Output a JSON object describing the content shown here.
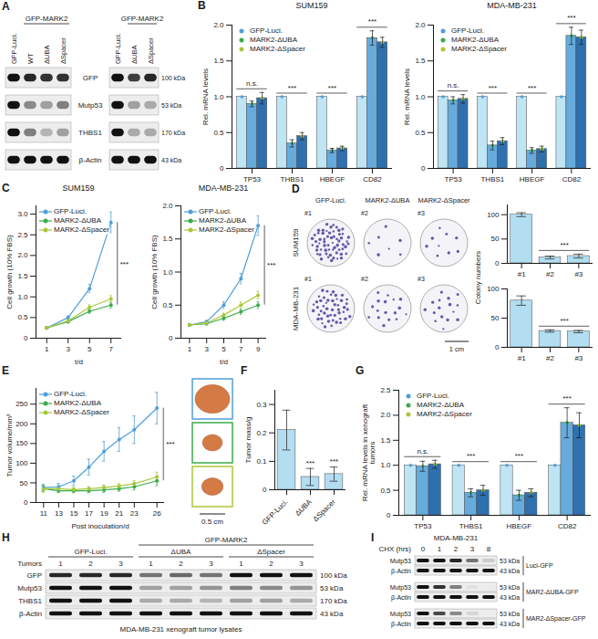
{
  "chart_data": [
    {
      "panel": "B",
      "type": "bar",
      "title": "SUM159",
      "ylabel": "Rel. mRNA levels",
      "categories": [
        "TP53",
        "THBS1",
        "HBEGF",
        "CD82"
      ],
      "series": [
        {
          "name": "GFP-Luci.",
          "color": "#4f9fd9",
          "values": [
            1,
            1,
            1,
            1
          ],
          "errors": [
            0,
            0,
            0,
            0
          ]
        },
        {
          "name": "MARK2-ΔUBA",
          "color": "#3bab4a",
          "values": [
            0.9,
            0.35,
            0.25,
            1.82
          ],
          "errors": [
            0.04,
            0.05,
            0.03,
            0.1
          ]
        },
        {
          "name": "MARK2-ΔSpacer",
          "color": "#a9c93c",
          "values": [
            0.98,
            0.45,
            0.28,
            1.76
          ],
          "errors": [
            0.08,
            0.05,
            0.03,
            0.07
          ]
        }
      ],
      "ylim": [
        0,
        2
      ],
      "yticks": [
        0,
        0.5,
        {
          "value": 1,
          "label": "1.0"
        },
        1.5,
        {
          "value": 2,
          "label": "2.0"
        }
      ],
      "legend": "top-left",
      "annotations": [
        {
          "text": "n.s.",
          "categories": [
            "TP53"
          ]
        },
        {
          "text": "***",
          "categories": [
            "THBS1"
          ]
        },
        {
          "text": "***",
          "categories": [
            "HBEGF"
          ]
        },
        {
          "text": "***",
          "categories": [
            "CD82"
          ]
        }
      ]
    },
    {
      "type": "bar",
      "title": "MDA-MB-231",
      "ylabel": "Rel. mRNA levels",
      "categories": [
        "TP53",
        "THBS1",
        "HBEGF",
        "CD82"
      ],
      "series": [
        {
          "name": "GFP-Luci.",
          "color": "#4f9fd9",
          "values": [
            1,
            1,
            1,
            1
          ],
          "errors": [
            0,
            0,
            0,
            0
          ]
        },
        {
          "name": "MARK2-ΔUBA",
          "color": "#3bab4a",
          "values": [
            0.95,
            0.32,
            0.25,
            1.85
          ],
          "errors": [
            0.05,
            0.06,
            0.04,
            0.12
          ]
        },
        {
          "name": "MARK2-ΔSpacer",
          "color": "#a9c93c",
          "values": [
            0.97,
            0.38,
            0.27,
            1.83
          ],
          "errors": [
            0.06,
            0.05,
            0.04,
            0.1
          ]
        }
      ],
      "ylim": [
        0,
        2
      ],
      "yticks": [
        0,
        0.5,
        {
          "value": 1,
          "label": "1.0"
        },
        1.5,
        {
          "value": 2,
          "label": "2.0"
        }
      ],
      "legend": "top-left",
      "annotations": [
        {
          "text": "n.s.",
          "categories": [
            "TP53"
          ]
        },
        {
          "text": "***",
          "categories": [
            "THBS1"
          ]
        },
        {
          "text": "***",
          "categories": [
            "HBEGF"
          ]
        },
        {
          "text": "***",
          "categories": [
            "CD82"
          ]
        }
      ]
    },
    {
      "panel": "C",
      "type": "line",
      "title": "SUM159",
      "xlabel": "t/d",
      "ylabel": "Cell growth (10% FBS)",
      "x": [
        1,
        3,
        5,
        7
      ],
      "series": [
        {
          "name": "GFP-Luci.",
          "color": "#4f9fd9",
          "values": [
            0.25,
            0.5,
            1.2,
            2.8
          ],
          "errors": [
            0.02,
            0.04,
            0.1,
            0.25
          ]
        },
        {
          "name": "MARK2-ΔUBA",
          "color": "#3bab4a",
          "values": [
            0.25,
            0.4,
            0.65,
            0.8
          ],
          "errors": [
            0.02,
            0.03,
            0.05,
            0.07
          ]
        },
        {
          "name": "MARK2-ΔSpacer",
          "color": "#a9c93c",
          "values": [
            0.25,
            0.42,
            0.75,
            0.95
          ],
          "errors": [
            0.02,
            0.03,
            0.06,
            0.08
          ]
        }
      ],
      "xlim": [
        0,
        8
      ],
      "xticks": [
        1,
        3,
        5,
        7
      ],
      "ylim": [
        0,
        3.2
      ],
      "yticks": [
        0,
        0.5,
        {
          "value": 1,
          "label": "1.0"
        },
        1.5,
        {
          "value": 2,
          "label": "2.0"
        },
        2.5,
        {
          "value": 3,
          "label": "3.0"
        }
      ],
      "legend": "top-left",
      "marker": "circle",
      "annotations": [
        {
          "text": "***",
          "x": 7
        }
      ]
    },
    {
      "type": "line",
      "title": "MDA-MB-231",
      "xlabel": "t/d",
      "ylabel": "Cell growth (10% FBS)",
      "x": [
        1,
        3,
        5,
        7,
        9
      ],
      "series": [
        {
          "name": "GFP-Luci.",
          "color": "#4f9fd9",
          "values": [
            0.2,
            0.25,
            0.5,
            0.9,
            1.7
          ],
          "errors": [
            0.02,
            0.02,
            0.05,
            0.08,
            0.15
          ]
        },
        {
          "name": "MARK2-ΔUBA",
          "color": "#3bab4a",
          "values": [
            0.2,
            0.22,
            0.3,
            0.4,
            0.5
          ],
          "errors": [
            0.02,
            0.02,
            0.03,
            0.04,
            0.05
          ]
        },
        {
          "name": "MARK2-ΔSpacer",
          "color": "#a9c93c",
          "values": [
            0.2,
            0.23,
            0.35,
            0.5,
            0.65
          ],
          "errors": [
            0.02,
            0.02,
            0.03,
            0.05,
            0.06
          ]
        }
      ],
      "xlim": [
        0,
        10
      ],
      "xticks": [
        1,
        3,
        5,
        7,
        9
      ],
      "ylim": [
        0,
        2
      ],
      "yticks": [
        0,
        0.5,
        {
          "value": 1,
          "label": "1.0"
        },
        1.5,
        {
          "value": 2,
          "label": "2.0"
        }
      ],
      "legend": "top-left",
      "marker": "circle",
      "annotations": [
        {
          "text": "***",
          "x": 9
        }
      ]
    },
    {
      "type": "bar",
      "categories": [
        "#1",
        "#2",
        "#3"
      ],
      "values": [
        100,
        12,
        15
      ],
      "errors": [
        4,
        3,
        4
      ],
      "color": "#b3ddf0",
      "ylim": [
        0,
        120
      ],
      "yticks": [
        0,
        50,
        100
      ],
      "annotations": [
        {
          "text": "***",
          "categories": [
            "#2",
            "#3"
          ]
        }
      ]
    },
    {
      "type": "bar",
      "categories": [
        "#1",
        "#2",
        "#3"
      ],
      "values": [
        80,
        28,
        27
      ],
      "errors": [
        8,
        2,
        2
      ],
      "color": "#b3ddf0",
      "ylim": [
        0,
        100
      ],
      "yticks": [
        0,
        50,
        100
      ],
      "annotations": [
        {
          "text": "***",
          "categories": [
            "#2",
            "#3"
          ]
        }
      ]
    },
    {
      "panel": "E",
      "type": "line",
      "xlabel": "Post inoculation/d",
      "ylabel": "Tumor volume/mm³",
      "x": [
        11,
        13,
        15,
        17,
        19,
        21,
        23,
        26
      ],
      "series": [
        {
          "name": "GFP-Luci.",
          "color": "#4f9fd9",
          "values": [
            38,
            40,
            55,
            90,
            130,
            160,
            185,
            240
          ],
          "errors": [
            8,
            8,
            12,
            20,
            25,
            30,
            35,
            40
          ]
        },
        {
          "name": "MARK2-ΔUBA",
          "color": "#3bab4a",
          "values": [
            35,
            30,
            30,
            30,
            32,
            35,
            40,
            55
          ],
          "errors": [
            8,
            5,
            5,
            5,
            6,
            6,
            8,
            12
          ]
        },
        {
          "name": "MARK2-ΔSpacer",
          "color": "#a9c93c",
          "values": [
            35,
            35,
            33,
            35,
            38,
            42,
            48,
            65
          ],
          "errors": [
            8,
            5,
            5,
            5,
            6,
            6,
            8,
            12
          ]
        }
      ],
      "xlim": [
        10,
        27
      ],
      "xticks": [
        11,
        13,
        15,
        17,
        19,
        21,
        23,
        26
      ],
      "ylim": [
        0,
        290
      ],
      "yticks": [
        0,
        50,
        100,
        150,
        200,
        250
      ],
      "legend": "top-left",
      "marker": "circle",
      "annotations": [
        {
          "text": "***",
          "x": 26
        }
      ]
    },
    {
      "panel": "F",
      "type": "bar",
      "ylabel": "Tumor mass/g",
      "categories": [
        "GFP-Luci.",
        "ΔUBA",
        "ΔSpacer"
      ],
      "values": [
        0.21,
        0.045,
        0.055
      ],
      "errors": [
        0.07,
        0.03,
        0.025
      ],
      "color": "#b3ddf0",
      "ylim": [
        0,
        0.35
      ],
      "yticks": [
        0,
        0.1,
        0.2,
        0.3
      ],
      "annotations": [
        {
          "text": "***",
          "categories": [
            "ΔUBA"
          ]
        },
        {
          "text": "***",
          "categories": [
            "ΔSpacer"
          ]
        }
      ]
    },
    {
      "panel": "G",
      "type": "bar",
      "ylabel": "Rel. mRNA levels in xenograft tumors",
      "categories": [
        "TP53",
        "THBS1",
        "HBEGF",
        "CD82"
      ],
      "series": [
        {
          "name": "GFP-Luci.",
          "color": "#4f9fd9",
          "values": [
            1,
            1,
            1,
            1
          ],
          "errors": [
            0,
            0,
            0,
            0
          ]
        },
        {
          "name": "MARK2-ΔUBA",
          "color": "#3bab4a",
          "values": [
            0.98,
            0.45,
            0.4,
            1.85
          ],
          "errors": [
            0.1,
            0.08,
            0.1,
            0.3
          ]
        },
        {
          "name": "MARK2-ΔSpacer",
          "color": "#a9c93c",
          "values": [
            1.02,
            0.5,
            0.45,
            1.8
          ],
          "errors": [
            0.08,
            0.1,
            0.08,
            0.25
          ]
        }
      ],
      "ylim": [
        0,
        2.5
      ],
      "yticks": [
        0,
        0.5,
        {
          "value": 1,
          "label": "1.0"
        },
        1.5,
        {
          "value": 2,
          "label": "2.0"
        },
        2.5
      ],
      "legend": "top-left",
      "annotations": [
        {
          "text": "n.s.",
          "categories": [
            "TP53"
          ]
        },
        {
          "text": "***",
          "categories": [
            "THBS1"
          ]
        },
        {
          "text": "***",
          "categories": [
            "HBEGF"
          ]
        },
        {
          "text": "***",
          "categories": [
            "CD82"
          ]
        }
      ]
    }
  ],
  "images": {
    "colony_plates": {
      "panel": "D",
      "columns": [
        "GFP-Luci.",
        "MARK2-ΔUBA",
        "MARK2-ΔSpacer"
      ],
      "rows": [
        "SUM159",
        "MDA-MB-231"
      ],
      "plate_labels": [
        [
          "#1",
          "#2",
          "#3"
        ],
        [
          "#1",
          "#2",
          "#3"
        ]
      ],
      "scale_bar": "1 cm",
      "ylabel": "Colony numbers"
    },
    "tumors": {
      "scale_bar": "0.5 cm"
    }
  },
  "blots": [
    {
      "panel": "A",
      "row_labels": [
        "GFP",
        "Mutp53",
        "THBS1",
        "β-Actin"
      ],
      "mw": [
        "100 kDa",
        "53 kDa",
        "170 kDa",
        "43 kDa"
      ],
      "blots": [
        {
          "header": {
            "text": "GFP-MARK2",
            "lanes": [
              1,
              3
            ]
          },
          "lanes": [
            "GFP-Luci.",
            "WT",
            "ΔUBA",
            "ΔSpacer"
          ],
          "intensities": [
            [
              1,
              0.9,
              0.85,
              0.85
            ],
            [
              1,
              0.45,
              0.35,
              0.5
            ],
            [
              1,
              0.5,
              0.25,
              0.35
            ],
            [
              1,
              1,
              1,
              1
            ]
          ]
        },
        {
          "header": {
            "text": "GFP-MARK2",
            "lanes": [
              1,
              2
            ]
          },
          "lanes": [
            "GFP-Luci.",
            "ΔUBA",
            "ΔSpacer"
          ],
          "intensities": [
            [
              1,
              0.8,
              0.9
            ],
            [
              1,
              0.35,
              0.3
            ],
            [
              1,
              0.3,
              0.3
            ],
            [
              1,
              1,
              1
            ]
          ]
        }
      ]
    },
    {
      "panel": "H",
      "headers": [
        [
          {
            "text": "GFP-MARK2",
            "lanes": [
              3,
              8
            ]
          }
        ],
        [
          {
            "text": "GFP-Luci.",
            "lanes": [
              0,
              2
            ]
          },
          {
            "text": "ΔUBA",
            "lanes": [
              3,
              5
            ]
          },
          {
            "text": "ΔSpacer",
            "lanes": [
              6,
              8
            ]
          }
        ]
      ],
      "lane_title": "Tumors",
      "lanes": [
        "1",
        "2",
        "3",
        "1",
        "2",
        "3",
        "1",
        "2",
        "3"
      ],
      "row_labels": [
        "GFP",
        "Mutp53",
        "THBS1",
        "β-Actin"
      ],
      "mw": [
        "100 kDa",
        "53 kDa",
        "170 kDa",
        "43 kDa"
      ],
      "intensities": [
        [
          0.9,
          0.9,
          0.9,
          0.55,
          0.6,
          0.55,
          1,
          1,
          1
        ],
        [
          1,
          1,
          1,
          0.35,
          0.35,
          0.4,
          0.5,
          0.45,
          0.4
        ],
        [
          1,
          1,
          1,
          0.3,
          0.3,
          0.25,
          0.35,
          0.35,
          0.3
        ],
        [
          1,
          1,
          1,
          1,
          1,
          1,
          1,
          1,
          1
        ]
      ],
      "caption": "MDA-MB-231 xenograft tumor lysates"
    },
    {
      "panel": "I",
      "title": "MDA-MB-231",
      "lane_title": "CHX (hrs)",
      "lanes": [
        "0",
        "1",
        "2",
        "3",
        "8"
      ],
      "row_labels": [
        "Mutp53",
        "β-Actin"
      ],
      "mw": [
        "53 kDa",
        "43 kDa"
      ],
      "sub_blots": [
        {
          "label": "Luci-GFP",
          "intensities": [
            [
              1,
              1,
              0.9,
              0.55,
              0.15
            ],
            [
              1,
              1,
              1,
              1,
              1
            ]
          ]
        },
        {
          "label": "MAR2-ΔUBA-GFP",
          "intensities": [
            [
              1,
              0.85,
              0.5,
              0.05,
              0
            ],
            [
              1,
              1,
              1,
              1,
              1
            ]
          ]
        },
        {
          "label": "MAR2-ΔSpacer-GFP",
          "intensities": [
            [
              1,
              0.75,
              0.45,
              0.1,
              0
            ],
            [
              1,
              1,
              1,
              1,
              1
            ]
          ]
        }
      ]
    }
  ]
}
